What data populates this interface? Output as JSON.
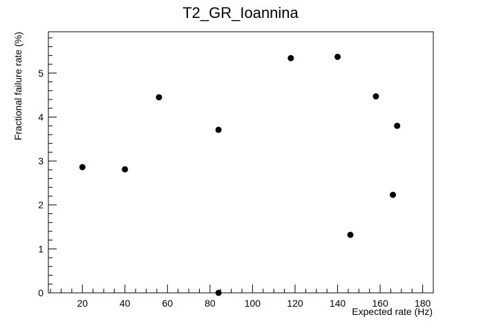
{
  "chart_data": {
    "type": "scatter",
    "title": "T2_GR_Ioannina",
    "xlabel": "Expected rate (Hz)",
    "ylabel": "Fractional failure rate (%)",
    "xlim": [
      4,
      185
    ],
    "ylim": [
      0,
      5.94
    ],
    "x_ticks": [
      20,
      40,
      60,
      80,
      100,
      120,
      140,
      160,
      180
    ],
    "y_ticks": [
      0,
      1,
      2,
      3,
      4,
      5
    ],
    "grid": false,
    "series": [
      {
        "marker_color": "#000000",
        "points": [
          {
            "x": 20,
            "y": 2.86
          },
          {
            "x": 40,
            "y": 2.81
          },
          {
            "x": 56,
            "y": 4.45
          },
          {
            "x": 84,
            "y": 3.71
          },
          {
            "x": 84,
            "y": 0.0
          },
          {
            "x": 118,
            "y": 5.34
          },
          {
            "x": 140,
            "y": 5.37
          },
          {
            "x": 146,
            "y": 1.32
          },
          {
            "x": 158,
            "y": 4.47
          },
          {
            "x": 166,
            "y": 2.23
          },
          {
            "x": 168,
            "y": 3.8
          }
        ]
      }
    ]
  }
}
